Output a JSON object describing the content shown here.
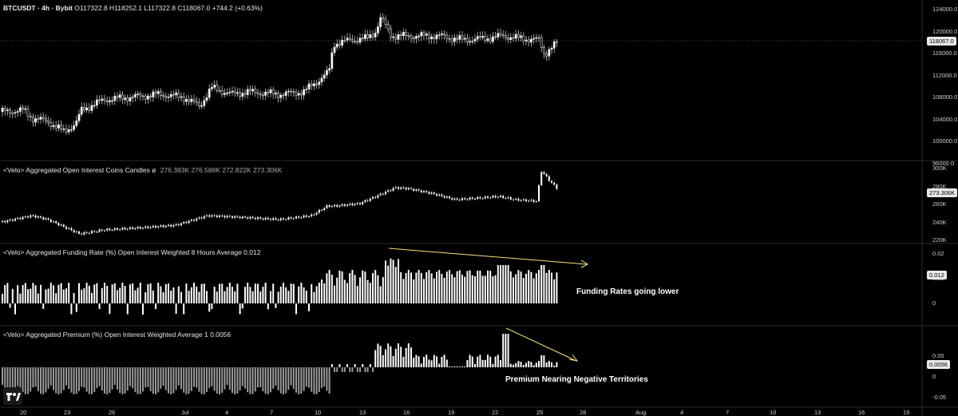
{
  "header": {
    "symbol": "BTCUSDT · 4h · Bybit",
    "ohlc": "O117322.8  H118252.1  L117322.8  C118067.0  +744.2 (+0.63%)"
  },
  "panes": {
    "price": {
      "ticks": [
        "124000.0",
        "120000.0",
        "116000.0",
        "112000.0",
        "108000.0",
        "104000.0",
        "100000.0",
        "96000.0"
      ],
      "last_price": "118067.0"
    },
    "open_interest": {
      "title": "<Velo> Aggregated Open Interest Coins Candles ø",
      "values": "276.383K  276.588K  272.822K  273.306K",
      "ticks": [
        "300K",
        "280K",
        "260K",
        "240K",
        "220K"
      ],
      "last_value": "273.306K"
    },
    "funding": {
      "title": "<Velo> Aggregated Funding Rate (%) Open Interest Weighted 8 Hours Average 0.012",
      "ticks": [
        "0.02",
        "0.01",
        "0"
      ],
      "last_value": "0.012",
      "annotation": "Funding Rates going lower"
    },
    "premium": {
      "title": "<Velo> Aggregated Premium (%) Open Interest Weighted Average 1 0.0056",
      "ticks": [
        "0.05",
        "0",
        "-0.05"
      ],
      "last_value": "0.0056",
      "annotation": "Premium Nearing Negative Territories"
    }
  },
  "time_axis": [
    "20",
    "23",
    "26",
    "Jul",
    "4",
    "7",
    "10",
    "13",
    "16",
    "19",
    "22",
    "25",
    "28",
    "Aug",
    "4",
    "7",
    "10",
    "13",
    "16",
    "19"
  ],
  "colors": {
    "background": "#000000",
    "candles": "#ffffff",
    "arrow": "#f5e27a",
    "grid": "#2a2a2a"
  }
}
